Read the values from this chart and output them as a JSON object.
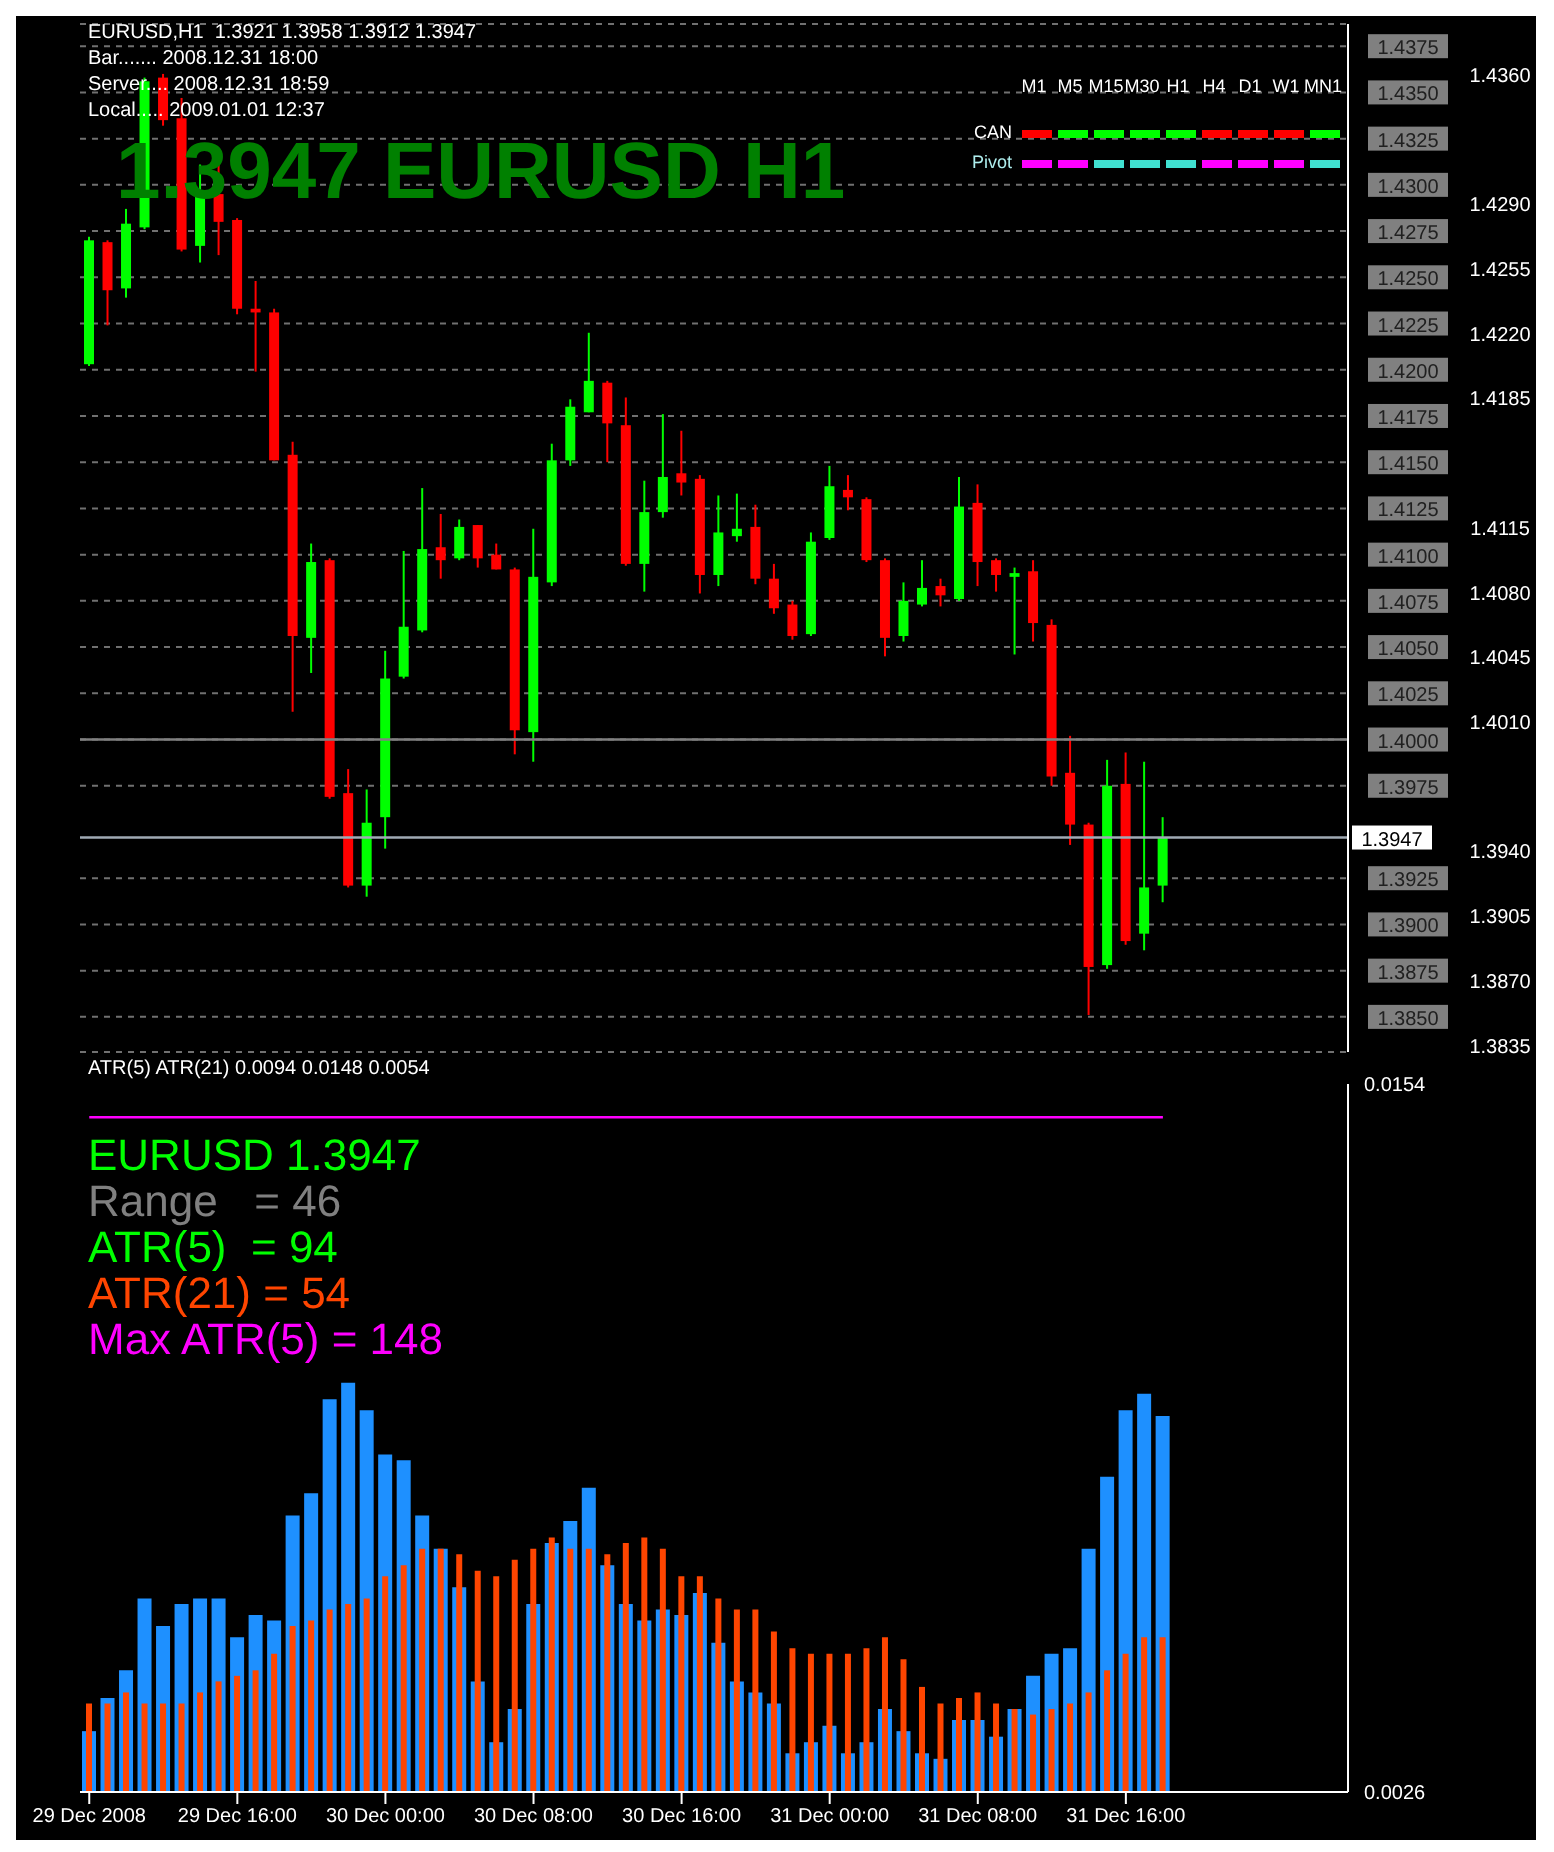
{
  "chart_data": [
    {
      "type": "candlestick",
      "title": "EURUSD,H1  1.3921 1.3958 1.3912 1.3947",
      "subtitle": "1.3947 EURUSD H1",
      "annotations": [
        "Bar....... 2008.12.31 18:00",
        "Server.... 2008.12.31 18:59",
        "Local..... 2009.01.01 12:37",
        "M1",
        "M5",
        "M15",
        "M30",
        "H1",
        "H4",
        "D1",
        "W1",
        "MN1",
        "CAN",
        "Pivot"
      ],
      "x": [
        "2008-12-29T08:00",
        "2008-12-29T09:00",
        "2008-12-29T10:00",
        "2008-12-29T11:00",
        "2008-12-29T12:00",
        "2008-12-29T13:00",
        "2008-12-29T14:00",
        "2008-12-29T15:00",
        "2008-12-29T16:00",
        "2008-12-29T17:00",
        "2008-12-29T18:00",
        "2008-12-29T19:00",
        "2008-12-29T20:00",
        "2008-12-29T21:00",
        "2008-12-29T22:00",
        "2008-12-29T23:00",
        "2008-12-30T00:00",
        "2008-12-30T01:00",
        "2008-12-30T02:00",
        "2008-12-30T03:00",
        "2008-12-30T04:00",
        "2008-12-30T05:00",
        "2008-12-30T06:00",
        "2008-12-30T07:00",
        "2008-12-30T08:00",
        "2008-12-30T09:00",
        "2008-12-30T10:00",
        "2008-12-30T11:00",
        "2008-12-30T12:00",
        "2008-12-30T13:00",
        "2008-12-30T14:00",
        "2008-12-30T15:00",
        "2008-12-30T16:00",
        "2008-12-30T17:00",
        "2008-12-30T18:00",
        "2008-12-30T19:00",
        "2008-12-30T20:00",
        "2008-12-30T21:00",
        "2008-12-30T22:00",
        "2008-12-30T23:00",
        "2008-12-31T00:00",
        "2008-12-31T01:00",
        "2008-12-31T02:00",
        "2008-12-31T03:00",
        "2008-12-31T04:00",
        "2008-12-31T05:00",
        "2008-12-31T06:00",
        "2008-12-31T07:00",
        "2008-12-31T08:00",
        "2008-12-31T09:00",
        "2008-12-31T10:00",
        "2008-12-31T11:00",
        "2008-12-31T12:00",
        "2008-12-31T13:00",
        "2008-12-31T14:00",
        "2008-12-31T15:00",
        "2008-12-31T16:00",
        "2008-12-31T17:00",
        "2008-12-31T18:00"
      ],
      "ohlc": [
        [
          1.4203,
          1.4272,
          1.4202,
          1.427
        ],
        [
          1.4269,
          1.427,
          1.4224,
          1.4243
        ],
        [
          1.4244,
          1.4287,
          1.4239,
          1.4279
        ],
        [
          1.4277,
          1.4358,
          1.4276,
          1.4356
        ],
        [
          1.4358,
          1.436,
          1.4332,
          1.4335
        ],
        [
          1.4336,
          1.4347,
          1.4264,
          1.4265
        ],
        [
          1.4267,
          1.4311,
          1.4258,
          1.4297
        ],
        [
          1.4295,
          1.4311,
          1.4262,
          1.428
        ],
        [
          1.4281,
          1.4282,
          1.423,
          1.4233
        ],
        [
          1.4233,
          1.4248,
          1.4199,
          1.4231
        ],
        [
          1.4231,
          1.4233,
          1.4151,
          1.4151
        ],
        [
          1.4154,
          1.4161,
          1.4015,
          1.4056
        ],
        [
          1.4055,
          1.4106,
          1.4036,
          1.4096
        ],
        [
          1.4097,
          1.4098,
          1.3968,
          1.3969
        ],
        [
          1.3971,
          1.3984,
          1.392,
          1.3921
        ],
        [
          1.3921,
          1.3973,
          1.3915,
          1.3955
        ],
        [
          1.3958,
          1.4048,
          1.3941,
          1.4033
        ],
        [
          1.4034,
          1.4102,
          1.4033,
          1.4061
        ],
        [
          1.4059,
          1.4136,
          1.4058,
          1.4103
        ],
        [
          1.4104,
          1.4122,
          1.4087,
          1.4097
        ],
        [
          1.4098,
          1.4119,
          1.4097,
          1.4115
        ],
        [
          1.4116,
          1.4116,
          1.4093,
          1.4098
        ],
        [
          1.41,
          1.4106,
          1.4092,
          1.4092
        ],
        [
          1.4092,
          1.4093,
          1.3992,
          1.4005
        ],
        [
          1.4004,
          1.4114,
          1.3988,
          1.4088
        ],
        [
          1.4085,
          1.416,
          1.4083,
          1.4151
        ],
        [
          1.4151,
          1.4184,
          1.4148,
          1.418
        ],
        [
          1.4177,
          1.422,
          1.4177,
          1.4194
        ],
        [
          1.4193,
          1.4194,
          1.415,
          1.4171
        ],
        [
          1.417,
          1.4185,
          1.4094,
          1.4095
        ],
        [
          1.4095,
          1.414,
          1.408,
          1.4123
        ],
        [
          1.4123,
          1.4176,
          1.412,
          1.4142
        ],
        [
          1.4144,
          1.4167,
          1.4132,
          1.4139
        ],
        [
          1.4141,
          1.4143,
          1.4079,
          1.4089
        ],
        [
          1.4089,
          1.4132,
          1.4083,
          1.4112
        ],
        [
          1.411,
          1.4133,
          1.4107,
          1.4114
        ],
        [
          1.4115,
          1.4127,
          1.4084,
          1.4087
        ],
        [
          1.4087,
          1.4095,
          1.4068,
          1.4071
        ],
        [
          1.4073,
          1.4075,
          1.4054,
          1.4056
        ],
        [
          1.4057,
          1.4112,
          1.4056,
          1.4107
        ],
        [
          1.4109,
          1.4148,
          1.4108,
          1.4137
        ],
        [
          1.4135,
          1.4143,
          1.4124,
          1.4131
        ],
        [
          1.413,
          1.4131,
          1.4096,
          1.4097
        ],
        [
          1.4097,
          1.4098,
          1.4045,
          1.4055
        ],
        [
          1.4056,
          1.4085,
          1.4053,
          1.4075
        ],
        [
          1.4073,
          1.4097,
          1.4072,
          1.4082
        ],
        [
          1.4083,
          1.4087,
          1.4072,
          1.4078
        ],
        [
          1.4076,
          1.4142,
          1.4075,
          1.4126
        ],
        [
          1.4128,
          1.4138,
          1.4083,
          1.4096
        ],
        [
          1.4097,
          1.4098,
          1.408,
          1.4089
        ],
        [
          1.4088,
          1.4093,
          1.4046,
          1.409
        ],
        [
          1.4091,
          1.4097,
          1.4053,
          1.4063
        ],
        [
          1.4062,
          1.4065,
          1.3975,
          1.398
        ],
        [
          1.3982,
          1.4002,
          1.3943,
          1.3954
        ],
        [
          1.3954,
          1.3955,
          1.3851,
          1.3877
        ],
        [
          1.3878,
          1.3989,
          1.3876,
          1.3975
        ],
        [
          1.3976,
          1.3993,
          1.3889,
          1.3891
        ],
        [
          1.3895,
          1.3988,
          1.3886,
          1.392
        ],
        [
          1.3921,
          1.3958,
          1.3912,
          1.3947
        ]
      ],
      "xlim": [
        "2008-12-29T07:30",
        "2009-01-01T04:00"
      ],
      "ylim": [
        1.3831,
        1.4387
      ],
      "yticks": [
        1.4375,
        {
          "value": 1.435,
          "label": "1.4350"
        },
        1.4325,
        {
          "value": 1.43,
          "label": "1.4300"
        },
        1.4275,
        {
          "value": 1.425,
          "label": "1.4250"
        },
        1.4225,
        {
          "value": 1.42,
          "label": "1.4200"
        },
        1.4175,
        {
          "value": 1.415,
          "label": "1.4150"
        },
        1.4125,
        {
          "value": 1.41,
          "label": "1.4100"
        },
        1.4075,
        {
          "value": 1.405,
          "label": "1.4050"
        },
        1.4025,
        {
          "value": 1.4,
          "label": "1.4000"
        },
        1.3975,
        1.3925,
        {
          "value": 1.39,
          "label": "1.3900"
        },
        1.3875,
        {
          "value": 1.385,
          "label": "1.3850"
        }
      ],
      "y2lim": [
        1.3831,
        1.4387
      ],
      "y2ticks": [
        {
          "value": 1.436,
          "label": "1.4360"
        },
        {
          "value": 1.429,
          "label": "1.4290"
        },
        1.4255,
        {
          "value": 1.422,
          "label": "1.4220"
        },
        1.4185,
        1.4115,
        {
          "value": 1.408,
          "label": "1.4080"
        },
        1.4045,
        {
          "value": 1.401,
          "label": "1.4010"
        },
        {
          "value": 1.394,
          "label": "1.3940"
        },
        1.3905,
        {
          "value": 1.387,
          "label": "1.3870"
        },
        1.3835
      ],
      "ref_lines": [
        {
          "axis": "y",
          "value": 1.4,
          "color": "#808080"
        },
        {
          "axis": "y",
          "value": 1.3947,
          "label": "1.3947",
          "color": "#a0aab4"
        }
      ],
      "grid": "y",
      "tick_labels": "y"
    },
    {
      "type": "bar",
      "title": "ATR(5) ATR(21) 0.0094 0.0148 0.0054",
      "annotations": [
        "EURUSD 1.3947",
        "Range   = 46",
        "ATR(5)  = 94",
        "ATR(21) = 54",
        "Max ATR(5) = 148"
      ],
      "x": [
        "2008-12-29T08:00",
        "2008-12-29T09:00",
        "2008-12-29T10:00",
        "2008-12-29T11:00",
        "2008-12-29T12:00",
        "2008-12-29T13:00",
        "2008-12-29T14:00",
        "2008-12-29T15:00",
        "2008-12-29T16:00",
        "2008-12-29T17:00",
        "2008-12-29T18:00",
        "2008-12-29T19:00",
        "2008-12-29T20:00",
        "2008-12-29T21:00",
        "2008-12-29T22:00",
        "2008-12-29T23:00",
        "2008-12-30T00:00",
        "2008-12-30T01:00",
        "2008-12-30T02:00",
        "2008-12-30T03:00",
        "2008-12-30T04:00",
        "2008-12-30T05:00",
        "2008-12-30T06:00",
        "2008-12-30T07:00",
        "2008-12-30T08:00",
        "2008-12-30T09:00",
        "2008-12-30T10:00",
        "2008-12-30T11:00",
        "2008-12-30T12:00",
        "2008-12-30T13:00",
        "2008-12-30T14:00",
        "2008-12-30T15:00",
        "2008-12-30T16:00",
        "2008-12-30T17:00",
        "2008-12-30T18:00",
        "2008-12-30T19:00",
        "2008-12-30T20:00",
        "2008-12-30T21:00",
        "2008-12-30T22:00",
        "2008-12-30T23:00",
        "2008-12-31T00:00",
        "2008-12-31T01:00",
        "2008-12-31T02:00",
        "2008-12-31T03:00",
        "2008-12-31T04:00",
        "2008-12-31T05:00",
        "2008-12-31T06:00",
        "2008-12-31T07:00",
        "2008-12-31T08:00",
        "2008-12-31T09:00",
        "2008-12-31T10:00",
        "2008-12-31T11:00",
        "2008-12-31T12:00",
        "2008-12-31T13:00",
        "2008-12-31T14:00",
        "2008-12-31T15:00",
        "2008-12-31T16:00",
        "2008-12-31T17:00",
        "2008-12-31T18:00"
      ],
      "series": [
        {
          "color": "#1e90ff",
          "values": [
            0.0037,
            0.0043,
            0.0048,
            0.0061,
            0.0056,
            0.006,
            0.0061,
            0.0061,
            0.0054,
            0.0058,
            0.0057,
            0.0076,
            0.008,
            0.0097,
            0.01,
            0.0095,
            0.0087,
            0.0086,
            0.0076,
            0.007,
            0.0063,
            0.0046,
            0.0035,
            0.0041,
            0.006,
            0.0071,
            0.0075,
            0.0081,
            0.0067,
            0.006,
            0.0057,
            0.0059,
            0.0058,
            0.0062,
            0.0053,
            0.0046,
            0.0044,
            0.0042,
            0.0033,
            0.0035,
            0.0038,
            0.0033,
            0.0035,
            0.0041,
            0.0037,
            0.0033,
            0.0032,
            0.0039,
            0.0039,
            0.0036,
            0.0041,
            0.0047,
            0.0051,
            0.0052,
            0.007,
            0.0083,
            0.0095,
            0.0098,
            0.0094
          ]
        },
        {
          "color": "#ff4500",
          "values": [
            0.0042,
            0.0042,
            0.0044,
            0.0042,
            0.0042,
            0.0042,
            0.0044,
            0.0046,
            0.0047,
            0.0048,
            0.0051,
            0.0056,
            0.0057,
            0.0059,
            0.006,
            0.0061,
            0.0065,
            0.0067,
            0.007,
            0.007,
            0.0069,
            0.0066,
            0.0065,
            0.0068,
            0.007,
            0.0072,
            0.007,
            0.007,
            0.0069,
            0.0071,
            0.0072,
            0.007,
            0.0065,
            0.0065,
            0.0061,
            0.0059,
            0.0059,
            0.0055,
            0.0052,
            0.0051,
            0.0051,
            0.0051,
            0.0052,
            0.0054,
            0.005,
            0.0045,
            0.0042,
            0.0043,
            0.0044,
            0.0042,
            0.0041,
            0.004,
            0.0041,
            0.0042,
            0.0044,
            0.0048,
            0.0051,
            0.0054,
            0.0054
          ]
        }
      ],
      "xlim": [
        "2008-12-29T07:30",
        "2009-01-01T04:00"
      ],
      "xticks": [
        {
          "value": "2008-12-29T08:00",
          "label": "29 Dec 2008"
        },
        {
          "value": "2008-12-29T16:00",
          "label": "29 Dec 16:00"
        },
        {
          "value": "2008-12-30T00:00",
          "label": "30 Dec 00:00"
        },
        {
          "value": "2008-12-30T08:00",
          "label": "30 Dec 08:00"
        },
        {
          "value": "2008-12-30T16:00",
          "label": "30 Dec 16:00"
        },
        {
          "value": "2008-12-31T00:00",
          "label": "31 Dec 00:00"
        },
        {
          "value": "2008-12-31T08:00",
          "label": "31 Dec 08:00"
        },
        {
          "value": "2008-12-31T16:00",
          "label": "31 Dec 16:00"
        }
      ],
      "ylim": [
        0.0026,
        0.0154
      ],
      "yticks": [
        0.0026,
        0.0154
      ],
      "ref_lines": [
        {
          "axis": "y",
          "value": 0.0148,
          "color": "#ff00ff"
        }
      ]
    }
  ]
}
